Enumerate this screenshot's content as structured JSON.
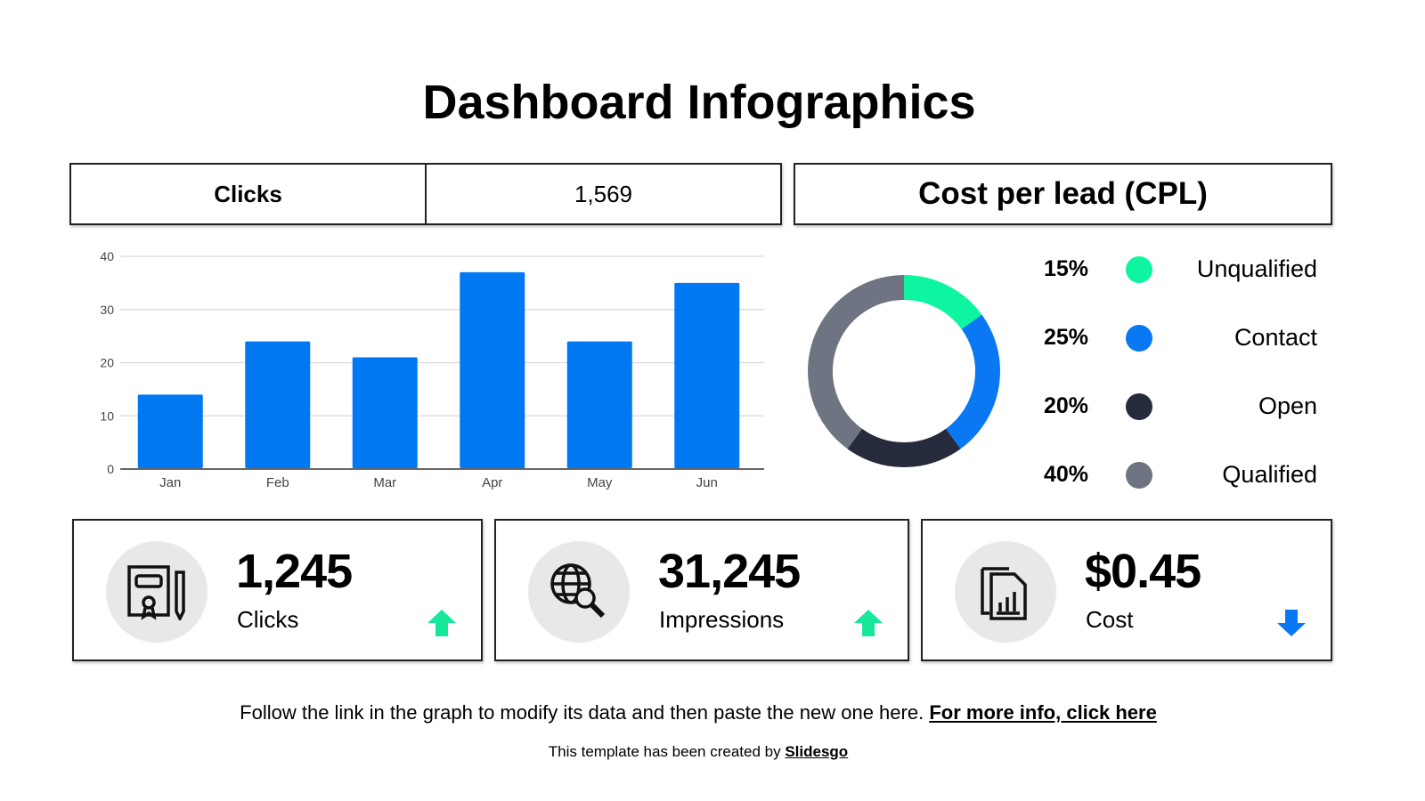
{
  "title": "Dashboard Infographics",
  "clicks_header": {
    "label": "Clicks",
    "value": "1,569"
  },
  "cpl_header": "Cost per lead (CPL)",
  "chart_data": [
    {
      "type": "bar",
      "categories": [
        "Jan",
        "Feb",
        "Mar",
        "Apr",
        "May",
        "Jun"
      ],
      "values": [
        14,
        24,
        21,
        37,
        24,
        35
      ],
      "ylim": [
        0,
        40
      ],
      "yticks": [
        "0",
        "10",
        "20",
        "30",
        "40"
      ],
      "grid": true,
      "color": "#0078f2"
    },
    {
      "type": "pie",
      "donut": true,
      "slices": [
        {
          "label": "Unqualified",
          "pct_label": "15%",
          "value": 15,
          "color": "#0df5a0"
        },
        {
          "label": "Contact",
          "pct_label": "25%",
          "value": 25,
          "color": "#0a78f2"
        },
        {
          "label": "Open",
          "pct_label": "20%",
          "value": 20,
          "color": "#252a3d"
        },
        {
          "label": "Qualified",
          "pct_label": "40%",
          "value": 40,
          "color": "#6f7482"
        }
      ]
    }
  ],
  "cards": [
    {
      "value": "1,245",
      "label": "Clicks",
      "icon": "certificate-icon",
      "trend": "up",
      "trend_color": "#17e79a"
    },
    {
      "value": "31,245",
      "label": "Impressions",
      "icon": "globe-search-icon",
      "trend": "up",
      "trend_color": "#17e79a"
    },
    {
      "value": "$0.45",
      "label": "Cost",
      "icon": "report-chart-icon",
      "trend": "down",
      "trend_color": "#0a78f2"
    }
  ],
  "footer": {
    "text": "Follow the link in the graph to modify its data and then paste the new one here.",
    "link": "For more info, click here"
  },
  "credit": {
    "text": "This template has been created by",
    "link": "Slidesgo"
  }
}
